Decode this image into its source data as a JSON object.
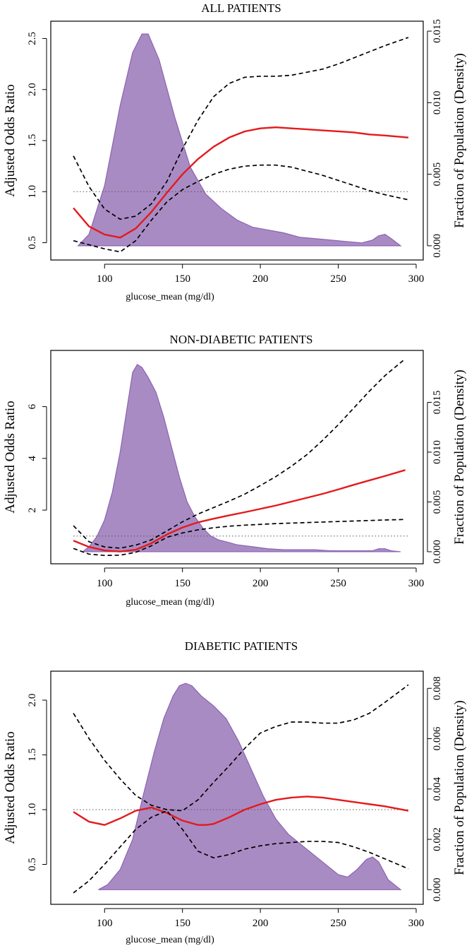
{
  "chart_data": [
    {
      "type": "line",
      "title": "ALL PATIENTS",
      "xlabel": "glucose_mean (mg/dl)",
      "ylabel": "Adjusted Odds Ratio",
      "ylabel_right": "Fraction of Population (Density)",
      "xlim": [
        70,
        300
      ],
      "ylim": [
        0.4,
        2.6
      ],
      "y2lim": [
        -0.0005,
        0.0152
      ],
      "xticks": [
        "100",
        "150",
        "200",
        "250",
        "300"
      ],
      "yticks": [
        "0.5",
        "1.0",
        "1.5",
        "2.0",
        "2.5"
      ],
      "y2ticks": [
        "0.000",
        "0.005",
        "0.010",
        "0.015"
      ],
      "reference_line": 1.0,
      "series": [
        {
          "name": "odds_ratio",
          "style": "solid",
          "color": "#e41a1c",
          "x": [
            80,
            90,
            100,
            110,
            120,
            130,
            140,
            150,
            160,
            170,
            180,
            190,
            200,
            210,
            220,
            230,
            240,
            250,
            260,
            270,
            280,
            295
          ],
          "y": [
            0.84,
            0.66,
            0.58,
            0.55,
            0.64,
            0.8,
            0.99,
            1.17,
            1.32,
            1.44,
            1.53,
            1.59,
            1.62,
            1.63,
            1.62,
            1.61,
            1.6,
            1.59,
            1.58,
            1.56,
            1.55,
            1.53
          ]
        },
        {
          "name": "ci_upper",
          "style": "dashed",
          "color": "#000000",
          "x": [
            80,
            90,
            100,
            110,
            120,
            130,
            140,
            150,
            160,
            170,
            180,
            190,
            200,
            210,
            220,
            230,
            240,
            250,
            260,
            270,
            280,
            295
          ],
          "y": [
            1.35,
            1.05,
            0.83,
            0.73,
            0.76,
            0.88,
            1.1,
            1.42,
            1.7,
            1.93,
            2.06,
            2.12,
            2.13,
            2.13,
            2.14,
            2.17,
            2.2,
            2.25,
            2.31,
            2.37,
            2.43,
            2.51
          ]
        },
        {
          "name": "ci_lower",
          "style": "dashed",
          "color": "#000000",
          "x": [
            80,
            90,
            100,
            110,
            120,
            130,
            140,
            150,
            160,
            170,
            180,
            190,
            200,
            210,
            220,
            230,
            240,
            250,
            260,
            270,
            280,
            295
          ],
          "y": [
            0.52,
            0.48,
            0.44,
            0.41,
            0.52,
            0.72,
            0.9,
            1.02,
            1.1,
            1.17,
            1.22,
            1.25,
            1.26,
            1.26,
            1.24,
            1.2,
            1.16,
            1.11,
            1.06,
            1.01,
            0.97,
            0.92
          ]
        }
      ],
      "density": {
        "x": [
          83,
          90,
          100,
          110,
          118,
          124,
          128,
          135,
          145,
          155,
          165,
          175,
          185,
          195,
          205,
          215,
          225,
          235,
          245,
          255,
          265,
          272,
          276,
          280,
          284,
          290
        ],
        "y": [
          0.0,
          0.0008,
          0.0042,
          0.0098,
          0.0135,
          0.0148,
          0.0148,
          0.013,
          0.009,
          0.0055,
          0.0036,
          0.0026,
          0.0018,
          0.0013,
          0.0011,
          0.0009,
          0.0006,
          0.0005,
          0.0004,
          0.0003,
          0.0002,
          0.0004,
          0.0007,
          0.0008,
          0.0005,
          0.0
        ]
      }
    },
    {
      "type": "line",
      "title": "NON-DIABETIC PATIENTS",
      "xlabel": "glucose_mean (mg/dl)",
      "ylabel": "Adjusted Odds Ratio",
      "ylabel_right": "Fraction of Population (Density)",
      "xlim": [
        70,
        300
      ],
      "ylim": [
        0.2,
        7.9
      ],
      "y2lim": [
        -0.0005,
        0.0195
      ],
      "xticks": [
        "100",
        "150",
        "200",
        "250",
        "300"
      ],
      "yticks": [
        "2",
        "4",
        "6"
      ],
      "y2ticks": [
        "0.000",
        "0.005",
        "0.010",
        "0.015"
      ],
      "reference_line": 1.0,
      "series": [
        {
          "name": "odds_ratio",
          "style": "solid",
          "color": "#e41a1c",
          "x": [
            80,
            90,
            100,
            110,
            120,
            130,
            140,
            150,
            160,
            170,
            180,
            190,
            200,
            210,
            220,
            230,
            240,
            250,
            260,
            270,
            280,
            293
          ],
          "y": [
            0.82,
            0.58,
            0.44,
            0.4,
            0.47,
            0.72,
            1.06,
            1.33,
            1.53,
            1.67,
            1.8,
            1.92,
            2.05,
            2.18,
            2.33,
            2.48,
            2.63,
            2.8,
            2.98,
            3.15,
            3.32,
            3.55
          ]
        },
        {
          "name": "ci_upper",
          "style": "dashed",
          "color": "#000000",
          "x": [
            80,
            90,
            100,
            110,
            120,
            130,
            140,
            150,
            160,
            170,
            180,
            190,
            200,
            210,
            220,
            230,
            240,
            250,
            260,
            270,
            280,
            293
          ],
          "y": [
            1.4,
            0.78,
            0.58,
            0.53,
            0.65,
            0.85,
            1.2,
            1.55,
            1.85,
            2.1,
            2.35,
            2.62,
            2.95,
            3.3,
            3.7,
            4.15,
            4.7,
            5.3,
            5.95,
            6.6,
            7.2,
            7.85
          ]
        },
        {
          "name": "ci_lower",
          "style": "dashed",
          "color": "#000000",
          "x": [
            80,
            90,
            100,
            110,
            120,
            130,
            140,
            150,
            160,
            170,
            180,
            190,
            200,
            210,
            220,
            230,
            240,
            250,
            260,
            270,
            280,
            293
          ],
          "y": [
            0.52,
            0.3,
            0.25,
            0.26,
            0.37,
            0.62,
            0.95,
            1.12,
            1.24,
            1.32,
            1.38,
            1.42,
            1.45,
            1.48,
            1.5,
            1.52,
            1.54,
            1.56,
            1.58,
            1.6,
            1.62,
            1.64
          ]
        }
      ],
      "density": {
        "x": [
          86,
          90,
          95,
          100,
          105,
          110,
          115,
          118,
          121,
          124,
          128,
          133,
          138,
          143,
          148,
          153,
          158,
          163,
          168,
          173,
          178,
          185,
          195,
          205,
          215,
          225,
          235,
          245,
          255,
          265,
          272,
          276,
          280,
          284,
          290
        ],
        "y": [
          0.0,
          0.0005,
          0.0015,
          0.0032,
          0.006,
          0.01,
          0.015,
          0.018,
          0.0188,
          0.0185,
          0.0175,
          0.016,
          0.0135,
          0.0105,
          0.0075,
          0.005,
          0.0035,
          0.0024,
          0.0016,
          0.0012,
          0.001,
          0.0007,
          0.0005,
          0.0003,
          0.0002,
          0.0002,
          0.0002,
          0.0001,
          0.0001,
          0.0001,
          0.0001,
          0.0003,
          0.0003,
          0.0001,
          0.0
        ]
      }
    },
    {
      "type": "line",
      "title": "DIABETIC PATIENTS",
      "xlabel": "glucose_mean (mg/dl)",
      "ylabel": "Adjusted Odds Ratio",
      "ylabel_right": "Fraction of Population (Density)",
      "xlim": [
        70,
        300
      ],
      "ylim": [
        0.2,
        2.2
      ],
      "y2lim": [
        -0.0003,
        0.0084
      ],
      "xticks": [
        "100",
        "150",
        "200",
        "250",
        "300"
      ],
      "yticks": [
        "0.5",
        "1.0",
        "1.5",
        "2.0"
      ],
      "y2ticks": [
        "0.000",
        "0.002",
        "0.004",
        "0.006",
        "0.008"
      ],
      "reference_line": 1.0,
      "series": [
        {
          "name": "odds_ratio",
          "style": "solid",
          "color": "#e41a1c",
          "x": [
            80,
            90,
            100,
            110,
            120,
            130,
            140,
            150,
            160,
            165,
            170,
            180,
            190,
            200,
            210,
            220,
            230,
            240,
            250,
            260,
            270,
            280,
            295
          ],
          "y": [
            0.98,
            0.89,
            0.86,
            0.92,
            0.99,
            1.02,
            0.97,
            0.9,
            0.86,
            0.86,
            0.87,
            0.93,
            1.0,
            1.05,
            1.09,
            1.11,
            1.12,
            1.11,
            1.09,
            1.07,
            1.05,
            1.03,
            0.99
          ]
        },
        {
          "name": "ci_upper",
          "style": "dashed",
          "color": "#000000",
          "x": [
            80,
            90,
            100,
            110,
            120,
            130,
            140,
            150,
            160,
            170,
            180,
            190,
            200,
            210,
            220,
            230,
            240,
            250,
            260,
            270,
            280,
            295
          ],
          "y": [
            1.88,
            1.65,
            1.45,
            1.28,
            1.13,
            1.04,
            1.0,
            0.99,
            1.09,
            1.25,
            1.4,
            1.56,
            1.7,
            1.76,
            1.8,
            1.8,
            1.79,
            1.79,
            1.82,
            1.88,
            1.98,
            2.14
          ]
        },
        {
          "name": "ci_lower",
          "style": "dashed",
          "color": "#000000",
          "x": [
            80,
            90,
            100,
            110,
            120,
            130,
            140,
            150,
            160,
            170,
            180,
            190,
            200,
            210,
            220,
            230,
            240,
            250,
            260,
            270,
            280,
            295
          ],
          "y": [
            0.24,
            0.35,
            0.5,
            0.66,
            0.82,
            0.93,
            0.99,
            0.82,
            0.62,
            0.56,
            0.59,
            0.64,
            0.67,
            0.69,
            0.7,
            0.71,
            0.71,
            0.7,
            0.66,
            0.61,
            0.55,
            0.46
          ]
        }
      ],
      "density": {
        "x": [
          96,
          102,
          110,
          118,
          125,
          132,
          138,
          144,
          148,
          152,
          156,
          162,
          170,
          178,
          186,
          194,
          202,
          210,
          218,
          226,
          234,
          242,
          250,
          256,
          262,
          268,
          272,
          276,
          282,
          290
        ],
        "y": [
          0.0,
          0.0002,
          0.0008,
          0.002,
          0.0038,
          0.0055,
          0.0068,
          0.0077,
          0.0081,
          0.0082,
          0.0081,
          0.0077,
          0.0073,
          0.0068,
          0.0059,
          0.0048,
          0.0037,
          0.0028,
          0.0022,
          0.0018,
          0.0014,
          0.001,
          0.0006,
          0.0005,
          0.0008,
          0.0012,
          0.0013,
          0.0011,
          0.0004,
          0.0
        ]
      }
    }
  ]
}
